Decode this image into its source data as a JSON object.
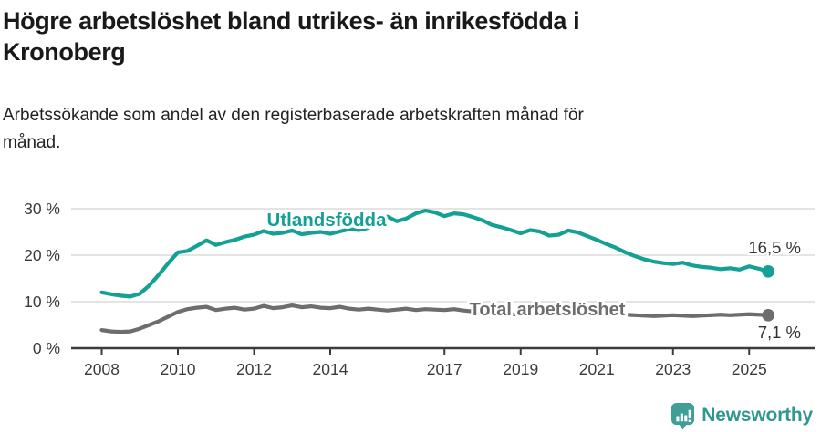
{
  "header": {
    "title_lines": [
      "Högre arbetslöshet bland utrikes- än inrikesfödda i",
      "Kronoberg"
    ],
    "subtitle_lines": [
      "Arbetssökande som andel av den registerbaserade arbetskraften månad för",
      "månad."
    ],
    "title_full": "Högre arbetslöshet bland utrikes- än inrikesfödda i Kronoberg",
    "subtitle_full": "Arbetssökande som andel av den registerbaserade arbetskraften månad för månad."
  },
  "chart_data": {
    "type": "line",
    "title": "Högre arbetslöshet bland utrikes- än inrikesfödda i Kronoberg",
    "ylabel": "",
    "xlabel": "",
    "unit": "percent of registered labour force",
    "x_resolution": "quarterly estimates of a monthly series",
    "x": [
      2008,
      2008.25,
      2008.5,
      2008.75,
      2009,
      2009.25,
      2009.5,
      2009.75,
      2010,
      2010.25,
      2010.5,
      2010.75,
      2011,
      2011.25,
      2011.5,
      2011.75,
      2012,
      2012.25,
      2012.5,
      2012.75,
      2013,
      2013.25,
      2013.5,
      2013.75,
      2014,
      2014.25,
      2014.5,
      2014.75,
      2015,
      2015.25,
      2015.5,
      2015.75,
      2016,
      2016.25,
      2016.5,
      2016.75,
      2017,
      2017.25,
      2017.5,
      2017.75,
      2018,
      2018.25,
      2018.5,
      2018.75,
      2019,
      2019.25,
      2019.5,
      2019.75,
      2020,
      2020.25,
      2020.5,
      2020.75,
      2021,
      2021.25,
      2021.5,
      2021.75,
      2022,
      2022.25,
      2022.5,
      2022.75,
      2023,
      2023.25,
      2023.5,
      2023.75,
      2024,
      2024.25,
      2024.5,
      2024.75,
      2025,
      2025.25,
      2025.5
    ],
    "series": [
      {
        "name": "Utlandsfödda",
        "color": "#14a095",
        "end_label": "16,5 %",
        "end_value": 16.5,
        "values": [
          12.0,
          11.6,
          11.3,
          11.1,
          11.7,
          13.5,
          15.8,
          18.3,
          20.6,
          20.9,
          22.0,
          23.2,
          22.2,
          22.8,
          23.3,
          24.0,
          24.4,
          25.2,
          24.6,
          24.8,
          25.3,
          24.5,
          24.8,
          25.0,
          24.6,
          25.1,
          25.6,
          25.4,
          25.9,
          27.6,
          28.3,
          27.3,
          27.9,
          29.0,
          29.6,
          29.2,
          28.4,
          29.0,
          28.8,
          28.2,
          27.5,
          26.5,
          26.0,
          25.4,
          24.7,
          25.4,
          25.1,
          24.2,
          24.4,
          25.3,
          24.9,
          24.1,
          23.3,
          22.4,
          21.6,
          20.6,
          19.8,
          19.1,
          18.6,
          18.3,
          18.1,
          18.4,
          17.8,
          17.5,
          17.3,
          17.0,
          17.2,
          16.9,
          17.6,
          17.1,
          16.5
        ]
      },
      {
        "name": "Total arbetslöshet",
        "color": "#6d6d6d",
        "end_label": "7,1 %",
        "end_value": 7.1,
        "values": [
          3.9,
          3.6,
          3.5,
          3.6,
          4.2,
          5.0,
          5.8,
          6.8,
          7.8,
          8.4,
          8.7,
          8.9,
          8.2,
          8.5,
          8.7,
          8.3,
          8.5,
          9.1,
          8.6,
          8.8,
          9.2,
          8.8,
          9.0,
          8.7,
          8.6,
          8.9,
          8.5,
          8.3,
          8.5,
          8.3,
          8.1,
          8.3,
          8.5,
          8.2,
          8.4,
          8.3,
          8.2,
          8.4,
          8.1,
          7.9,
          7.7,
          7.5,
          7.4,
          7.3,
          7.2,
          7.3,
          7.4,
          7.6,
          7.8,
          8.6,
          8.4,
          8.0,
          7.8,
          7.6,
          7.4,
          7.2,
          7.1,
          7.0,
          6.9,
          7.0,
          7.1,
          7.0,
          6.9,
          7.0,
          7.1,
          7.2,
          7.1,
          7.2,
          7.3,
          7.2,
          7.1
        ]
      }
    ],
    "ytick_labels": [
      "0 %",
      "10 %",
      "20 %",
      "30 %"
    ],
    "ytick_values": [
      0,
      10,
      20,
      30
    ],
    "xtick_labels": [
      "2008",
      "2010",
      "2012",
      "2014",
      "2017",
      "2019",
      "2021",
      "2023",
      "2025"
    ],
    "xtick_values": [
      2008,
      2010,
      2012,
      2014,
      2017,
      2019,
      2021,
      2023,
      2025
    ],
    "ylim": [
      0,
      31.5
    ],
    "xlim": [
      2007.2,
      2026.5
    ],
    "grid": "horizontal",
    "legend": "inline-series-labels",
    "colors": {
      "grid": "#dcdcdc",
      "axis": "#3c3c3c",
      "tick_text": "#3a3a3a",
      "value_label_text": "#333333"
    }
  },
  "footer": {
    "brand": "Newsworthy",
    "logo_icon": "bar-chart-pin-icon",
    "brand_color": "#3f9e96"
  }
}
